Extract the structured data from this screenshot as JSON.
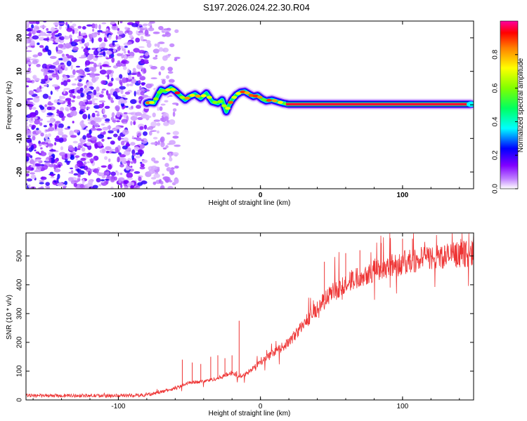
{
  "title": "S197.2026.024.22.30.R04",
  "chart_data": [
    {
      "type": "heatmap",
      "panel": "top",
      "xlabel": "Height of straight line (km)",
      "ylabel": "Frequency (Hz)",
      "xlim": [
        -165,
        150
      ],
      "ylim": [
        -25,
        25
      ],
      "xticks": [
        -100,
        0,
        100
      ],
      "xtick_labels": [
        "-100",
        "0",
        "100"
      ],
      "yticks": [
        20,
        10,
        0,
        -10,
        -20
      ],
      "ytick_labels": [
        "20",
        "10",
        "0",
        "-10",
        "-20"
      ],
      "noise_region_x": [
        -165,
        -80
      ],
      "doppler_trace": {
        "x": [
          -80,
          -78,
          -75,
          -72,
          -70,
          -67,
          -63,
          -60,
          -57,
          -53,
          -50,
          -46,
          -42,
          -38,
          -34,
          -30,
          -27,
          -24,
          -22,
          -20,
          -17,
          -14,
          -11,
          -8,
          -5,
          -2,
          1,
          4,
          8,
          12,
          16,
          20,
          40,
          60,
          80,
          100,
          120,
          140,
          148
        ],
        "y": [
          0.5,
          0.8,
          0.6,
          3.0,
          4.5,
          4.0,
          5.0,
          4.2,
          3.0,
          1.5,
          2.5,
          3.2,
          2.0,
          3.5,
          1.0,
          0.5,
          1.5,
          -2.0,
          0.0,
          1.5,
          3.0,
          3.8,
          4.0,
          3.2,
          2.5,
          2.8,
          1.8,
          1.2,
          1.5,
          1.0,
          0.5,
          0.2,
          0.2,
          0.2,
          0.2,
          0.2,
          0.2,
          0.2,
          0.2
        ]
      },
      "colorbar": {
        "label": "Normalized spectral amplitude",
        "ticks": [
          0.0,
          0.2,
          0.4,
          0.6,
          0.8
        ],
        "tick_labels": [
          "0.0",
          "0.2",
          "0.4",
          "0.6",
          "0.8"
        ],
        "range": [
          0,
          1
        ],
        "colors": [
          "#ffffff",
          "#8000ff",
          "#0000ff",
          "#00ffff",
          "#00ff00",
          "#ffff00",
          "#ff8000",
          "#ff0000",
          "#ff00ff"
        ]
      }
    },
    {
      "type": "line",
      "panel": "bottom",
      "xlabel": "Height of straight line (km)",
      "ylabel": "SNR (10 * v/v)",
      "xlim": [
        -165,
        150
      ],
      "ylim": [
        0,
        580
      ],
      "xticks": [
        -100,
        0,
        100
      ],
      "xtick_labels": [
        "-100",
        "0",
        "100"
      ],
      "yticks": [
        0,
        100,
        200,
        300,
        400,
        500
      ],
      "ytick_labels": [
        "0",
        "100",
        "200",
        "300",
        "400",
        "500"
      ],
      "color": "#ee3333",
      "series": [
        {
          "name": "SNR",
          "x": [
            -165,
            -140,
            -110,
            -90,
            -80,
            -70,
            -60,
            -50,
            -40,
            -30,
            -20,
            -15,
            -10,
            -5,
            0,
            10,
            20,
            30,
            40,
            50,
            60,
            70,
            80,
            90,
            100,
            110,
            120,
            130,
            140,
            150
          ],
          "y": [
            15,
            15,
            15,
            15,
            18,
            28,
            40,
            60,
            65,
            75,
            95,
            80,
            90,
            110,
            130,
            165,
            200,
            260,
            320,
            370,
            405,
            430,
            450,
            465,
            475,
            485,
            495,
            500,
            505,
            510
          ]
        }
      ],
      "spikes": {
        "x": [
          -55,
          -48,
          -42,
          -35,
          -30,
          -25,
          -20,
          -15,
          45,
          60,
          70,
          85,
          100,
          107
        ],
        "y": [
          140,
          130,
          125,
          150,
          155,
          145,
          155,
          275,
          480,
          510,
          520,
          545,
          560,
          560
        ]
      }
    }
  ]
}
